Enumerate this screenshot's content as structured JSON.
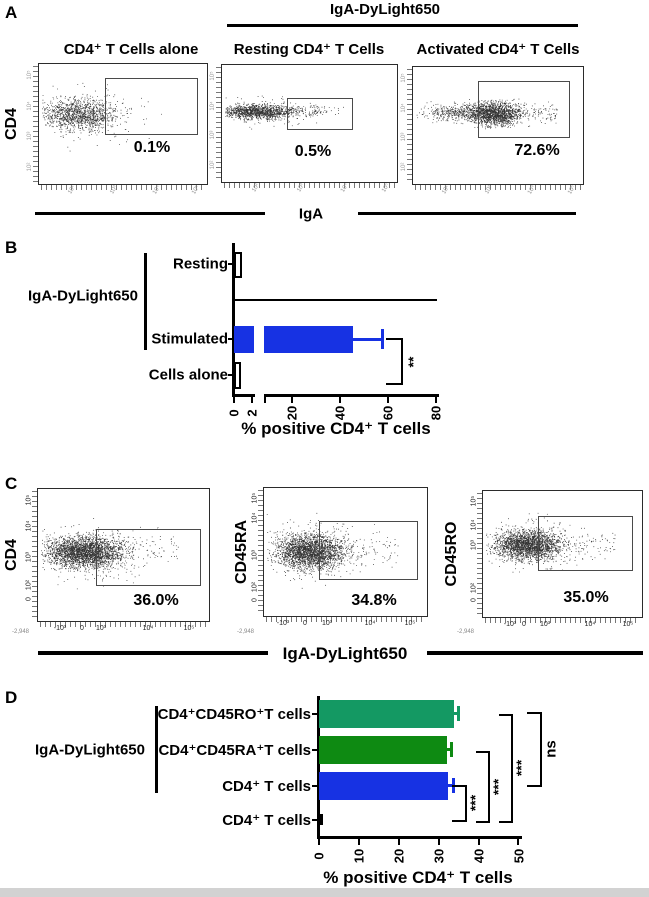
{
  "colors": {
    "blue": "#1732e3",
    "green": "#0e8a12",
    "sea_green": "#149963",
    "bottom_strip": "#d2d2d2"
  },
  "panelA": {
    "label": "A",
    "header": "IgA-DyLight650",
    "y_axis_label": "CD4",
    "x_axis_label": "IgA",
    "plots": [
      {
        "title": "CD4⁺ T Cells alone",
        "percent": "0.1%"
      },
      {
        "title": "Resting CD4⁺ T Cells",
        "percent": "0.5%"
      },
      {
        "title": "Activated CD4⁺ T Cells",
        "percent": "72.6%"
      }
    ],
    "xticks": [
      "10²",
      "10³",
      "10⁴",
      "10⁵"
    ],
    "yticks": [
      "10⁵",
      "10⁴",
      "10³",
      "10²"
    ]
  },
  "panelB": {
    "label": "B",
    "group_label": "IgA-DyLight650",
    "categories": [
      "Resting",
      "Stimulated",
      "Cells alone"
    ],
    "xticks": [
      "0",
      "2",
      "20",
      "40",
      "60",
      "80"
    ],
    "x_axis_label": "% positive CD4⁺ T cells",
    "significance": "**"
  },
  "panelC": {
    "label": "C",
    "x_axis_label": "IgA-DyLight650",
    "plots": [
      {
        "y_label": "CD4",
        "percent": "36.0%"
      },
      {
        "y_label": "CD45RA",
        "percent": "34.8%"
      },
      {
        "y_label": "CD45RO",
        "percent": "35.0%"
      }
    ],
    "xticks": [
      "-10³",
      "0",
      "10³",
      "10⁴",
      "10⁵"
    ],
    "yticks": [
      "10⁵",
      "10⁴",
      "10³",
      "10²",
      "0"
    ],
    "corner_text": "-2,948"
  },
  "panelD": {
    "label": "D",
    "group_label": "IgA-DyLight650",
    "categories": [
      "CD4⁺CD45RO⁺T cells",
      "CD4⁺CD45RA⁺T cells",
      "CD4⁺ T cells",
      "CD4⁺ T cells"
    ],
    "xticks": [
      "0",
      "10",
      "20",
      "30",
      "40",
      "50"
    ],
    "x_axis_label": "% positive CD4⁺ T cells",
    "significance": [
      "***",
      "***",
      "***",
      "ns"
    ]
  },
  "chart_data": [
    {
      "type": "scatter",
      "panel": "A",
      "description": "Flow cytometry dot plots of IgA (x, log scale) vs CD4 (y, log scale); gate rectangles with percent positive",
      "plots": [
        {
          "name": "CD4+ T Cells alone",
          "gate_percent": 0.1
        },
        {
          "name": "Resting CD4+ T Cells",
          "gate_percent": 0.5
        },
        {
          "name": "Activated CD4+ T Cells",
          "gate_percent": 72.6
        }
      ]
    },
    {
      "type": "bar",
      "panel": "B",
      "orientation": "horizontal",
      "title": "IgA-DyLight650",
      "categories": [
        "Resting",
        "Stimulated",
        "Cells alone"
      ],
      "values": [
        0.6,
        45,
        0.2
      ],
      "errors": [
        0,
        12,
        0
      ],
      "bar_colors": [
        "#ffffff",
        "#1732e3",
        "#ffffff"
      ],
      "xlabel": "% positive CD4⁺ T cells",
      "xlim": [
        0,
        80
      ],
      "xticks": [
        0,
        2,
        20,
        40,
        60,
        80
      ],
      "axis_break_between": [
        2,
        10
      ],
      "significance": [
        {
          "groups": [
            "Stimulated",
            "Cells alone"
          ],
          "label": "**"
        }
      ]
    },
    {
      "type": "scatter",
      "panel": "C",
      "description": "Flow cytometry dot plots of IgA-DyLight650 (x, log scale) vs surface marker (y, log scale); gate rectangles with percent positive",
      "plots": [
        {
          "name": "CD4",
          "gate_percent": 36.0
        },
        {
          "name": "CD45RA",
          "gate_percent": 34.8
        },
        {
          "name": "CD45RO",
          "gate_percent": 35.0
        }
      ]
    },
    {
      "type": "bar",
      "panel": "D",
      "orientation": "horizontal",
      "title": "IgA-DyLight650",
      "categories": [
        "CD4+CD45RO+T cells",
        "CD4+CD45RA+T cells",
        "CD4+ T cells",
        "CD4+ T cells (unstained)"
      ],
      "values": [
        34,
        32,
        32.5,
        0.3
      ],
      "errors": [
        1.5,
        1.5,
        2,
        0
      ],
      "bar_colors": [
        "#149963",
        "#0e8a12",
        "#1732e3",
        "#ffffff"
      ],
      "xlabel": "% positive CD4⁺ T cells",
      "xlim": [
        0,
        50
      ],
      "xticks": [
        0,
        10,
        20,
        30,
        40,
        50
      ],
      "significance": [
        {
          "groups": [
            "CD4+ T cells",
            "CD4+ T cells (unstained)"
          ],
          "label": "***"
        },
        {
          "groups": [
            "CD4+CD45RA+T cells",
            "CD4+ T cells (unstained)"
          ],
          "label": "***"
        },
        {
          "groups": [
            "CD4+CD45RO+T cells",
            "CD4+ T cells (unstained)"
          ],
          "label": "***"
        },
        {
          "groups": [
            "CD4+CD45RO+T cells",
            "CD4+ T cells"
          ],
          "label": "ns"
        }
      ]
    }
  ]
}
